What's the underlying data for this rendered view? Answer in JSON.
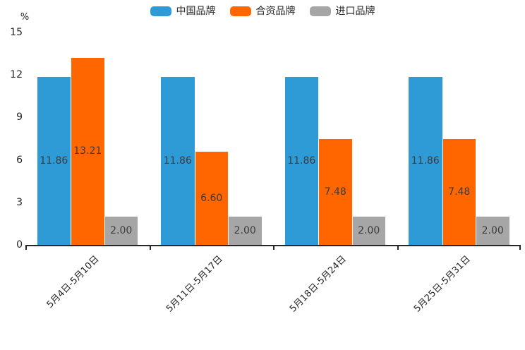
{
  "chart_data": {
    "type": "bar",
    "title": "",
    "unit_label": "%",
    "categories": [
      "5月4日-5月10日",
      "5月11日-5月17日",
      "5月18日-5月24日",
      "5月25日-5月31日"
    ],
    "series": [
      {
        "name": "中国品牌",
        "color": "#2E9BD6",
        "values": [
          11.86,
          11.86,
          11.86,
          11.86
        ],
        "labels": [
          "11.86",
          "11.86",
          "11.86",
          "11.86"
        ]
      },
      {
        "name": "合资品牌",
        "color": "#FF6600",
        "values": [
          13.21,
          6.6,
          7.48,
          7.48
        ],
        "labels": [
          "13.21",
          "6.60",
          "7.48",
          "7.48"
        ]
      },
      {
        "name": "进口品牌",
        "color": "#A6A6A6",
        "values": [
          2.0,
          2.0,
          2.0,
          2.0
        ],
        "labels": [
          "2.00",
          "2.00",
          "2.00",
          "2.00"
        ]
      }
    ],
    "y_ticks": [
      0,
      3,
      6,
      9,
      12,
      15
    ],
    "ylim": [
      0,
      15
    ],
    "ylabel": "%",
    "xlabel": "",
    "grid": false,
    "legend_position": "top",
    "value_label_position": "inside-center",
    "colors": {
      "axis": "#262626",
      "value_label": "#3c3c3c",
      "background": "#ffffff"
    }
  }
}
